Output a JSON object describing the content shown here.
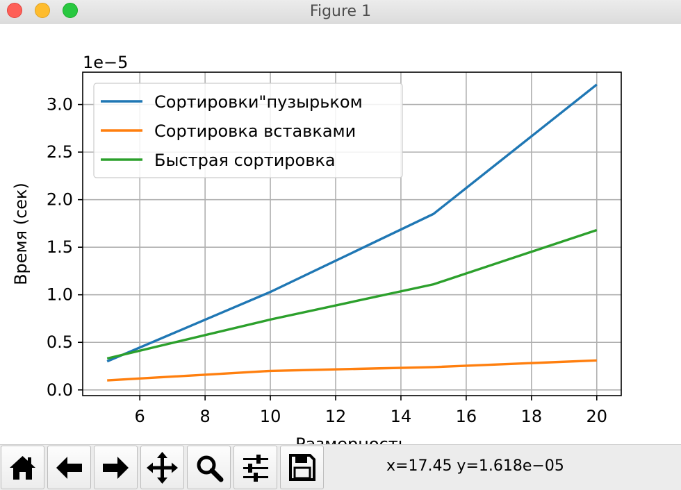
{
  "window": {
    "title": "Figure 1"
  },
  "chart_data": {
    "type": "line",
    "x": [
      5,
      10,
      15,
      20
    ],
    "series": [
      {
        "name": "Сортировки\"пузырьком",
        "color": "#1f77b4",
        "values": [
          3e-06,
          1.03e-05,
          1.85e-05,
          3.21e-05
        ]
      },
      {
        "name": "Сортировка вставками",
        "color": "#ff7f0e",
        "values": [
          1e-06,
          2e-06,
          2.4e-06,
          3.1e-06
        ]
      },
      {
        "name": "Быстрая сортировка",
        "color": "#2ca02c",
        "values": [
          3.3e-06,
          7.4e-06,
          1.11e-05,
          1.68e-05
        ]
      }
    ],
    "x_ticks": [
      "6",
      "8",
      "10",
      "12",
      "14",
      "16",
      "18",
      "20"
    ],
    "y_ticks": [
      "0.0",
      "0.5",
      "1.0",
      "1.5",
      "2.0",
      "2.5",
      "3.0"
    ],
    "x_tick_values": [
      6,
      8,
      10,
      12,
      14,
      16,
      18,
      20
    ],
    "y_tick_values": [
      0,
      0.5,
      1.0,
      1.5,
      2.0,
      2.5,
      3.0
    ],
    "y_offset": "1e−5",
    "xlim": [
      4.25,
      20.75
    ],
    "ylim": [
      -0.06,
      3.34
    ],
    "ylabel": "Время (сек)",
    "xlabel": "Размерность",
    "grid": true,
    "legend_position": "upper-left"
  },
  "toolbar": {
    "buttons": [
      {
        "id": "home",
        "icon": "home-icon"
      },
      {
        "id": "back",
        "icon": "arrow-left-icon"
      },
      {
        "id": "forward",
        "icon": "arrow-right-icon"
      },
      {
        "id": "pan",
        "icon": "move-icon"
      },
      {
        "id": "zoom",
        "icon": "magnifier-icon"
      },
      {
        "id": "configure",
        "icon": "sliders-icon"
      },
      {
        "id": "save",
        "icon": "floppy-disk-icon"
      }
    ],
    "coords": "x=17.45 y=1.618e−05"
  }
}
